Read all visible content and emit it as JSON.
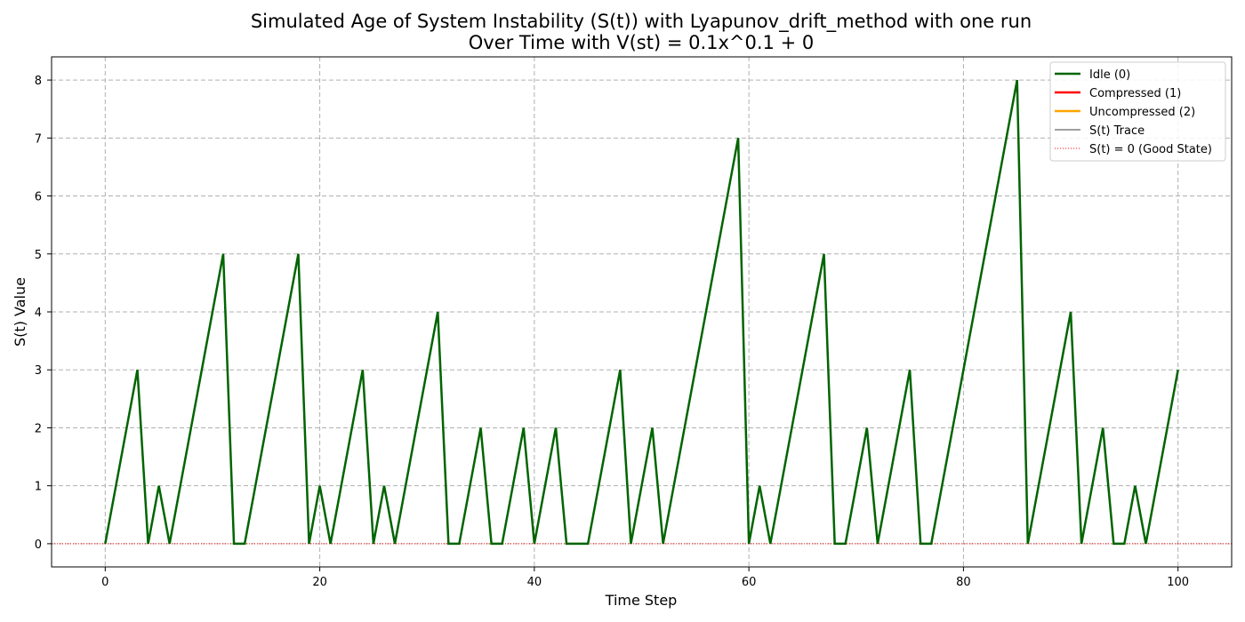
{
  "chart_data": {
    "type": "line",
    "title_line1": "Simulated Age of System Instability (S(t)) with Lyapunov_drift_method with one run",
    "title_line2": "Over Time with V(st) = 0.1x^0.1 + 0",
    "xlabel": "Time Step",
    "ylabel": "S(t) Value",
    "xlim": [
      -5,
      105
    ],
    "ylim": [
      -0.4,
      8.4
    ],
    "x_ticks": [
      0,
      20,
      40,
      60,
      80,
      100
    ],
    "y_ticks": [
      0,
      1,
      2,
      3,
      4,
      5,
      6,
      7,
      8
    ],
    "grid": true,
    "legend_position": "top-right",
    "legend": [
      {
        "label": "Idle (0)",
        "color": "#006400",
        "style": "solid-thick"
      },
      {
        "label": "Compressed (1)",
        "color": "#ff0000",
        "style": "solid-thick"
      },
      {
        "label": "Uncompressed (2)",
        "color": "#ffa500",
        "style": "solid-thick"
      },
      {
        "label": "S(t) Trace",
        "color": "#000000",
        "style": "solid-thin"
      },
      {
        "label": "S(t) = 0 (Good State)",
        "color": "#ff0000",
        "style": "dotted"
      }
    ],
    "series": [
      {
        "color": "#006400",
        "x": [
          0,
          1,
          2,
          3,
          4,
          5,
          6,
          7,
          8,
          9,
          10,
          11,
          12,
          13,
          14,
          15,
          16,
          17,
          18,
          19,
          20,
          21,
          22,
          23,
          24,
          25,
          26,
          27,
          28,
          29,
          30,
          31,
          32,
          33,
          34,
          35,
          36,
          37,
          38,
          39,
          40,
          41,
          42,
          43,
          44,
          45,
          46,
          47,
          48,
          49,
          50,
          51,
          52,
          53,
          54,
          55,
          56,
          57,
          58,
          59,
          60,
          61,
          62,
          63,
          64,
          65,
          66,
          67,
          68,
          69,
          70,
          71,
          72,
          73,
          74,
          75,
          76,
          77,
          78,
          79,
          80,
          81,
          82,
          83,
          84,
          85,
          86,
          87,
          88,
          89,
          90,
          91,
          92,
          93,
          94,
          95,
          96,
          97,
          98,
          99,
          100
        ],
        "y": [
          0,
          1,
          2,
          3,
          0,
          1,
          0,
          1,
          2,
          3,
          4,
          5,
          0,
          0,
          1,
          2,
          3,
          4,
          5,
          0,
          1,
          0,
          1,
          2,
          3,
          0,
          1,
          0,
          1,
          2,
          3,
          4,
          0,
          0,
          1,
          2,
          0,
          0,
          1,
          2,
          0,
          1,
          2,
          0,
          0,
          0,
          1,
          2,
          3,
          0,
          1,
          2,
          0,
          1,
          2,
          3,
          4,
          5,
          6,
          7,
          0,
          1,
          0,
          1,
          2,
          3,
          4,
          5,
          0,
          0,
          1,
          2,
          0,
          1,
          2,
          3,
          0,
          0,
          1,
          2,
          3,
          4,
          5,
          6,
          7,
          8,
          0,
          1,
          2,
          3,
          4,
          0,
          1,
          2,
          0,
          0,
          1,
          0,
          1,
          2,
          3
        ]
      }
    ],
    "reference_line_y": 0
  }
}
